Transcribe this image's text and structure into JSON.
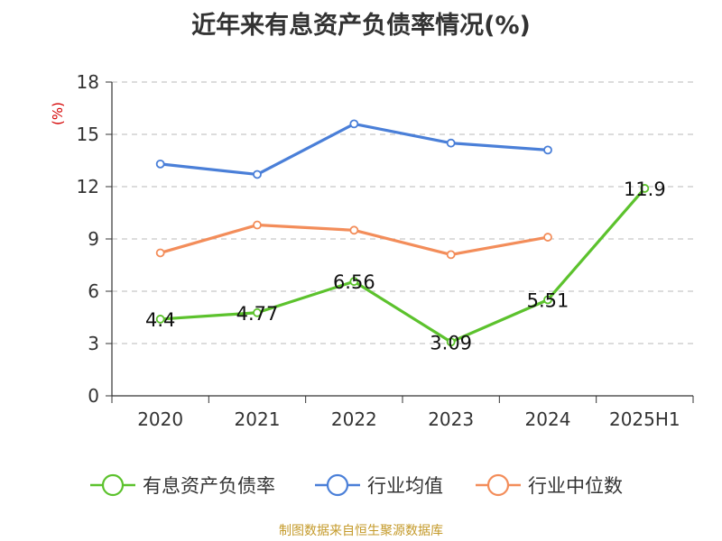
{
  "title": "近年来有息资产负债率情况(%)",
  "source": "制图数据来自恒生聚源数据库",
  "chart_data": {
    "type": "line",
    "title": "近年来有息资产负债率情况(%)",
    "ylabel": "(%)",
    "xlabel": "",
    "categories": [
      "2020",
      "2021",
      "2022",
      "2023",
      "2024",
      "2025H1"
    ],
    "ylim": [
      0,
      18
    ],
    "yticks": [
      0,
      3,
      6,
      9,
      12,
      15,
      18
    ],
    "grid": "horizontal dashed",
    "legend_position": "bottom",
    "series": [
      {
        "name": "有息资产负债率",
        "color": "#5cc22d",
        "values": [
          4.4,
          4.77,
          6.56,
          3.09,
          5.51,
          11.9
        ],
        "labels": [
          "4.4",
          "4.77",
          "6.56",
          "3.09",
          "5.51",
          "11.9"
        ]
      },
      {
        "name": "行业均值",
        "color": "#4a7fd8",
        "values": [
          13.3,
          12.7,
          15.6,
          14.5,
          14.1,
          null
        ]
      },
      {
        "name": "行业中位数",
        "color": "#f38d5a",
        "values": [
          8.2,
          9.8,
          9.5,
          8.1,
          9.1,
          null
        ]
      }
    ]
  }
}
